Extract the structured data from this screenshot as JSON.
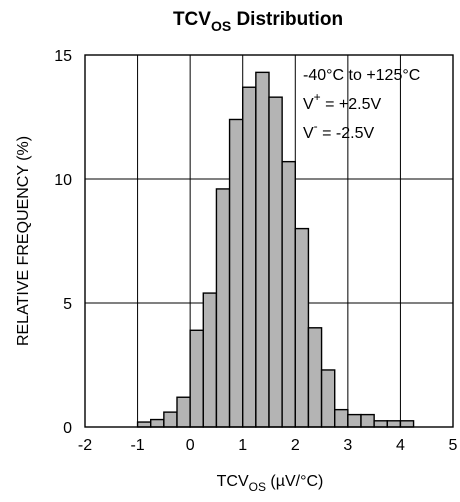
{
  "chart_data": {
    "type": "bar",
    "title_main": "TCV",
    "title_sub": "OS",
    "title_rest": " Distribution",
    "xlabel_main": "TCV",
    "xlabel_sub": "OS",
    "xlabel_rest": " (µV/°C)",
    "ylabel": "RELATIVE FREQUENCY (%)",
    "xlim": [
      -2,
      5
    ],
    "ylim": [
      0,
      15
    ],
    "x_ticks": [
      "-2",
      "-1",
      "0",
      "1",
      "2",
      "3",
      "4",
      "5"
    ],
    "y_ticks": [
      "0",
      "5",
      "10",
      "15"
    ],
    "grid": true,
    "bin_width": 0.25,
    "bin_starts": [
      -1.0,
      -0.75,
      -0.5,
      -0.25,
      0.0,
      0.25,
      0.5,
      0.75,
      1.0,
      1.25,
      1.5,
      1.75,
      2.0,
      2.25,
      2.5,
      2.75,
      3.0,
      3.25,
      3.5,
      3.75,
      4.0
    ],
    "values": [
      0.2,
      0.3,
      0.6,
      1.2,
      3.9,
      5.4,
      9.6,
      12.4,
      13.7,
      14.3,
      13.3,
      10.7,
      8.0,
      4.0,
      2.3,
      0.7,
      0.5,
      0.5,
      0.25,
      0.25,
      0.25
    ],
    "bar_color": "#b4b4b4",
    "annotation": {
      "line1": "-40°C to +125°C",
      "line2_main": "V",
      "line2_sup": "+",
      "line2_rest": " = +2.5V",
      "line3_main": "V",
      "line3_sup": "-",
      "line3_rest": " = -2.5V"
    }
  }
}
